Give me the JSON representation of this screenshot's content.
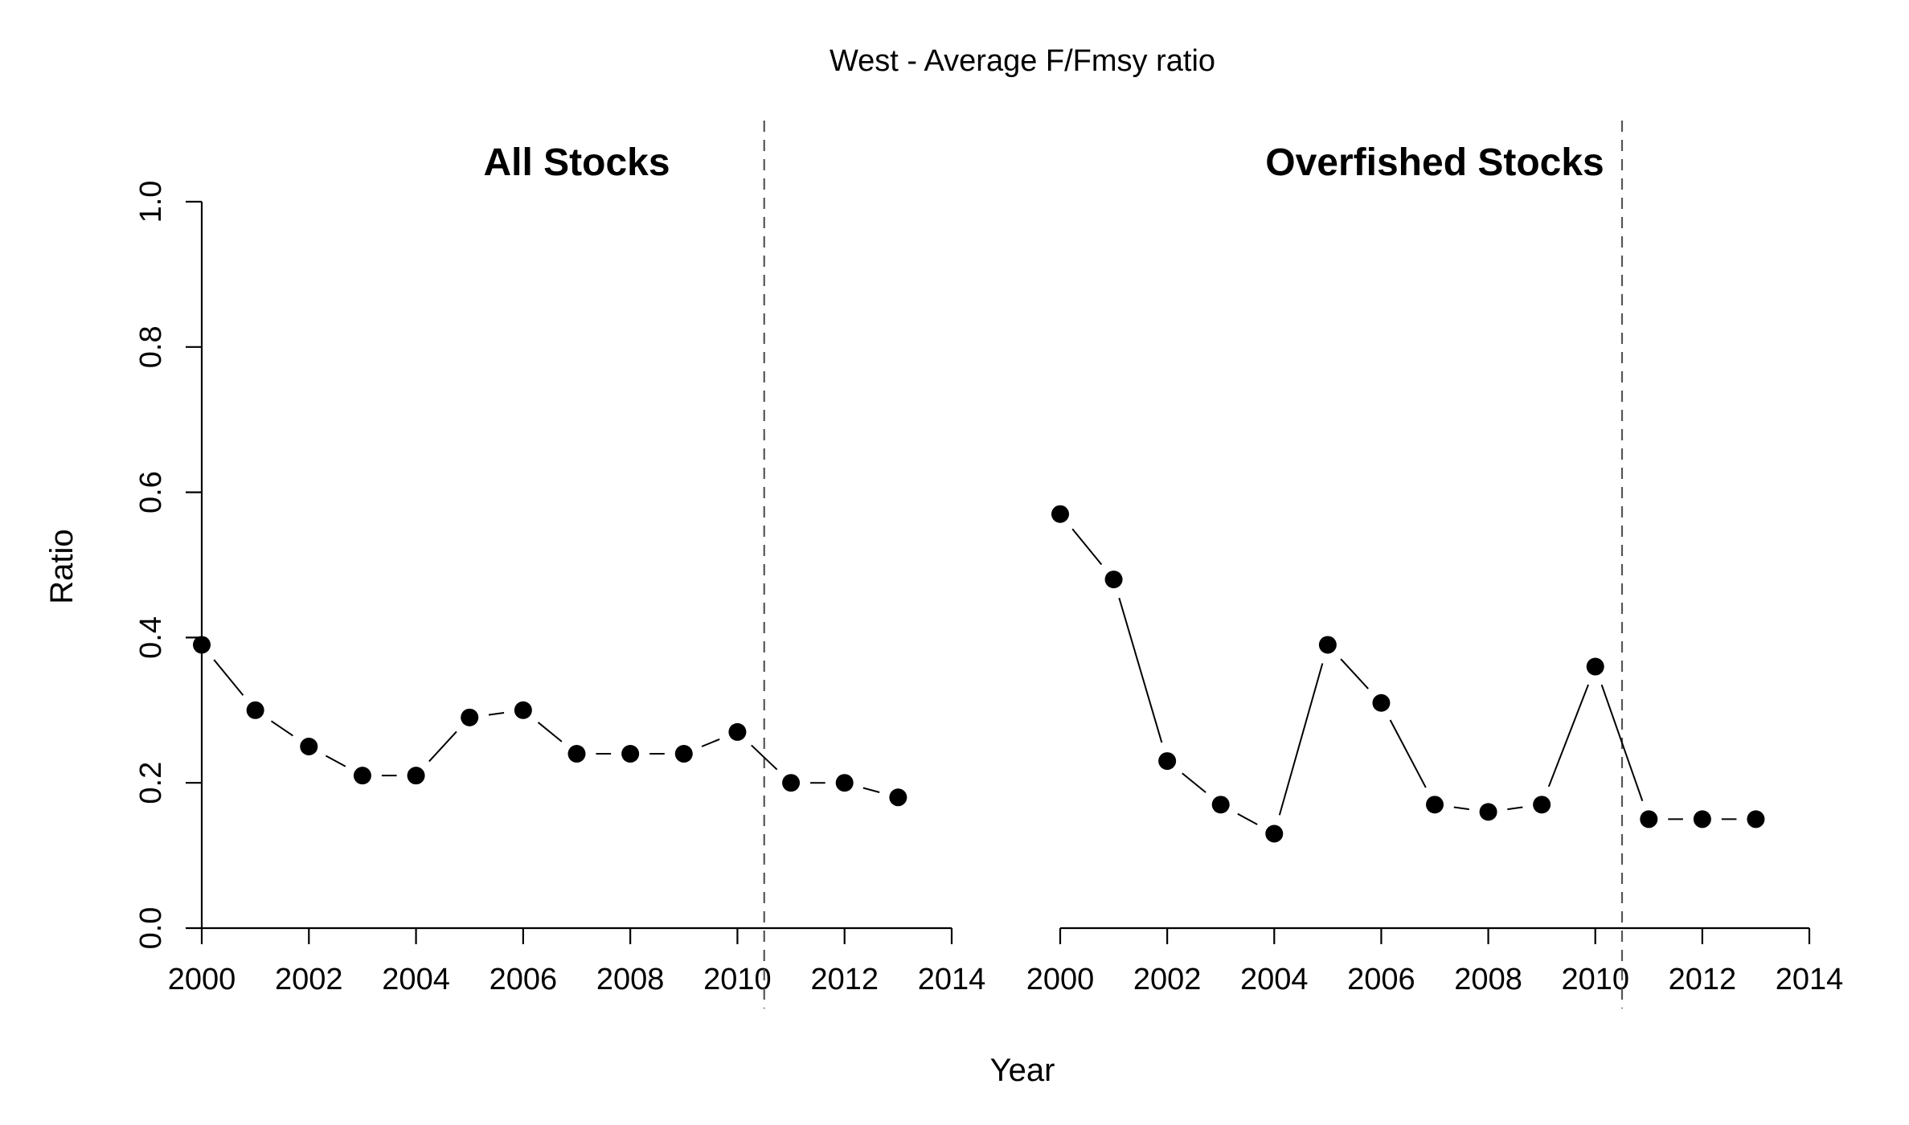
{
  "chart_data": {
    "title": "West - Average F/Fmsy ratio",
    "xlabel": "Year",
    "ylabel": "Ratio",
    "ylim": [
      0,
      1
    ],
    "xlim": [
      2000,
      2014
    ],
    "x_ticks": [
      "2000",
      "2002",
      "2004",
      "2006",
      "2008",
      "2010",
      "2012",
      "2014"
    ],
    "y_ticks": [
      "0.0",
      "0.2",
      "0.4",
      "0.6",
      "0.8",
      "1.0"
    ],
    "vertical_reference_line_x": 2010.5,
    "panels": [
      {
        "type": "line",
        "title": "All Stocks",
        "x": [
          2000,
          2001,
          2002,
          2003,
          2004,
          2005,
          2006,
          2007,
          2008,
          2009,
          2010,
          2011,
          2012,
          2013
        ],
        "y": [
          0.39,
          0.3,
          0.25,
          0.21,
          0.21,
          0.29,
          0.3,
          0.24,
          0.24,
          0.24,
          0.27,
          0.2,
          0.2,
          0.18
        ]
      },
      {
        "type": "line",
        "title": "Overfished Stocks",
        "x": [
          2000,
          2001,
          2002,
          2003,
          2004,
          2005,
          2006,
          2007,
          2008,
          2009,
          2010,
          2011,
          2012,
          2013
        ],
        "y": [
          0.57,
          0.48,
          0.23,
          0.17,
          0.13,
          0.39,
          0.31,
          0.17,
          0.16,
          0.17,
          0.36,
          0.15,
          0.15,
          0.15
        ]
      }
    ]
  }
}
